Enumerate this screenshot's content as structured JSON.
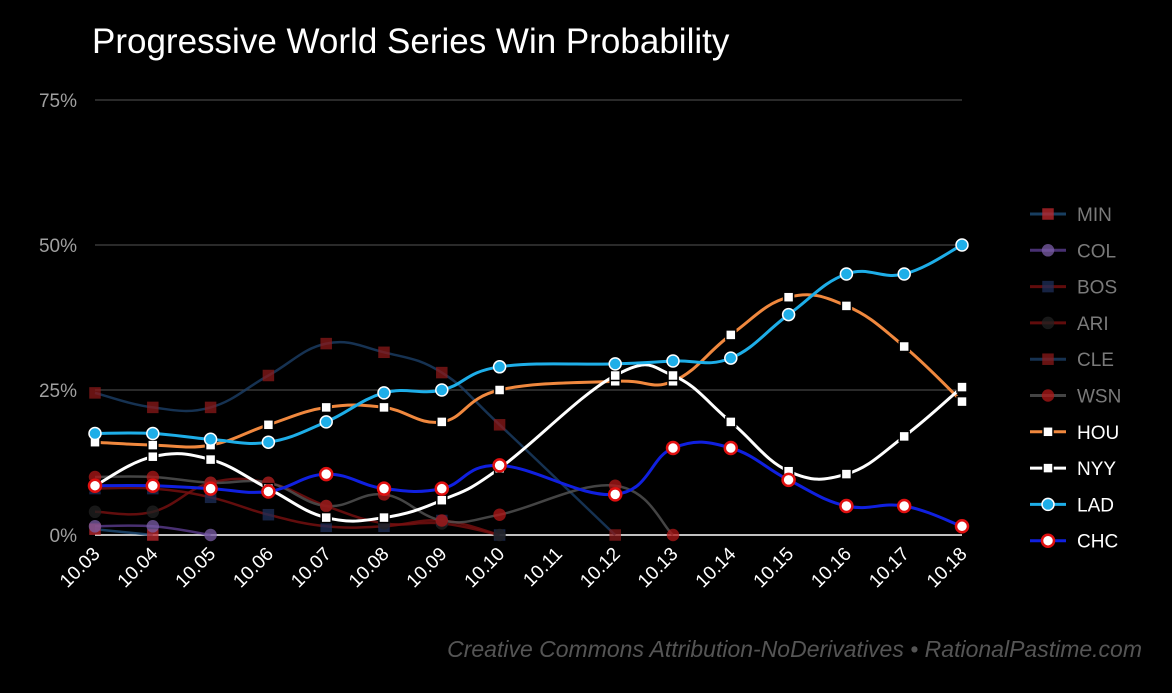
{
  "chart_data": {
    "type": "line",
    "title": "Progressive World Series Win Probability",
    "xlabel": "",
    "ylabel": "",
    "categories": [
      "10.03",
      "10.04",
      "10.05",
      "10.06",
      "10.07",
      "10.08",
      "10.09",
      "10.10",
      "10.11",
      "10.12",
      "10.13",
      "10.14",
      "10.15",
      "10.16",
      "10.17",
      "10.18"
    ],
    "y_ticks": [
      "0%",
      "25%",
      "50%",
      "75%"
    ],
    "ylim": [
      0,
      75
    ],
    "grid": true,
    "legend_position": "right",
    "series": [
      {
        "name": "MIN",
        "color": "#c0282e",
        "marker": "square",
        "line_color": "#1f4e79",
        "faded": true,
        "values": [
          1,
          0,
          null,
          null,
          null,
          null,
          null,
          null,
          null,
          null,
          null,
          null,
          null,
          null,
          null,
          null
        ]
      },
      {
        "name": "COL",
        "color": "#7b5ea7",
        "marker": "circle",
        "line_color": "#5b3c8f",
        "faded": true,
        "values": [
          1.5,
          1.5,
          0,
          null,
          null,
          null,
          null,
          null,
          null,
          null,
          null,
          null,
          null,
          null,
          null,
          null
        ]
      },
      {
        "name": "BOS",
        "color": "#1f2f5a",
        "marker": "square",
        "line_color": "#7a1010",
        "faded": true,
        "values": [
          8,
          8,
          6.5,
          3.5,
          1.5,
          1.5,
          2.5,
          0,
          null,
          null,
          null,
          null,
          null,
          null,
          null,
          null
        ]
      },
      {
        "name": "ARI",
        "color": "#222222",
        "marker": "circle",
        "line_color": "#7a1010",
        "faded": true,
        "values": [
          4,
          4,
          9,
          9,
          5,
          2,
          2,
          0,
          null,
          null,
          null,
          null,
          null,
          null,
          null,
          null
        ]
      },
      {
        "name": "CLE",
        "color": "#8b1a1a",
        "marker": "square",
        "line_color": "#1c3f66",
        "faded": true,
        "values": [
          24.5,
          22,
          22,
          27.5,
          33,
          31.5,
          28,
          19,
          null,
          0,
          null,
          null,
          null,
          null,
          null,
          null
        ]
      },
      {
        "name": "WSN",
        "color": "#b01818",
        "marker": "circle",
        "line_color": "#555555",
        "faded": true,
        "values": [
          10,
          10,
          9,
          9,
          5,
          7,
          2.5,
          3.5,
          null,
          8.5,
          0,
          null,
          null,
          null,
          null,
          null
        ]
      },
      {
        "name": "HOU",
        "color": "#f0883e",
        "marker": "square",
        "line_color": "#f0883e",
        "faded": false,
        "values": [
          16,
          15.5,
          15.5,
          19,
          22,
          22,
          19.5,
          25,
          null,
          26.5,
          26.5,
          34.5,
          41,
          39.5,
          32.5,
          23
        ]
      },
      {
        "name": "NYY",
        "color": "#ffffff",
        "marker": "square",
        "line_color": "#ffffff",
        "faded": false,
        "values": [
          8.5,
          13.5,
          13,
          8,
          3,
          3,
          6,
          11.5,
          null,
          27.5,
          27.5,
          19.5,
          11,
          10.5,
          17,
          25.5
        ]
      },
      {
        "name": "LAD",
        "color": "#1eaee8",
        "marker": "circle",
        "line_color": "#1eaee8",
        "faded": false,
        "values": [
          17.5,
          17.5,
          16.5,
          16,
          19.5,
          24.5,
          25,
          29,
          null,
          29.5,
          30,
          30.5,
          38,
          45,
          45,
          50
        ]
      },
      {
        "name": "CHC",
        "color": "#1020e0",
        "marker": "circle",
        "line_color": "#1020e0",
        "faded": false,
        "values": [
          8.5,
          8.5,
          8,
          7.5,
          10.5,
          8,
          8,
          12,
          null,
          7,
          15,
          15,
          9.5,
          5,
          5,
          1.5
        ]
      }
    ]
  },
  "credit": "Creative Commons Attribution-NoDerivatives • RationalPastime.com"
}
